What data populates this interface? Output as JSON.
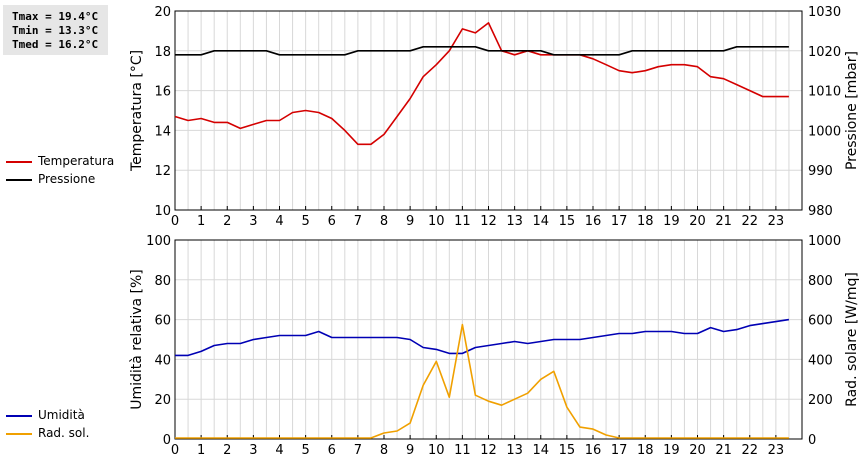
{
  "stats": {
    "tmax": "Tmax = 19.4°C",
    "tmin": "Tmin = 13.3°C",
    "tmed": "Tmed = 16.2°C"
  },
  "legend": {
    "top": [
      {
        "label": "Temperatura",
        "color": "#d40000"
      },
      {
        "label": "Pressione",
        "color": "#000000"
      }
    ],
    "bottom": [
      {
        "label": "Umidità",
        "color": "#0000b4"
      },
      {
        "label": "Rad. sol.",
        "color": "#f0a000"
      }
    ]
  },
  "chart_data": [
    {
      "type": "line",
      "xlabel": "",
      "ylabel": "Temperatura [°C]",
      "y2label": "Pressione [mbar]",
      "xlim": [
        0,
        24
      ],
      "ylim": [
        10,
        20
      ],
      "y2lim": [
        980,
        1030
      ],
      "xticks": [
        "0",
        "1",
        "2",
        "3",
        "4",
        "5",
        "6",
        "7",
        "8",
        "9",
        "10",
        "11",
        "12",
        "13",
        "14",
        "15",
        "16",
        "17",
        "18",
        "19",
        "20",
        "21",
        "22",
        "23"
      ],
      "yticks": [
        "10",
        "12",
        "14",
        "16",
        "18",
        "20"
      ],
      "y2ticks": [
        "980",
        "990",
        "1000",
        "1010",
        "1020",
        "1030"
      ],
      "grid": true,
      "series": [
        {
          "name": "Temperatura",
          "axis": "left",
          "color": "#d40000",
          "x": [
            0,
            0.5,
            1,
            1.5,
            2,
            2.5,
            3,
            3.5,
            4,
            4.5,
            5,
            5.5,
            6,
            6.5,
            7,
            7.5,
            8,
            8.5,
            9,
            9.5,
            10,
            10.5,
            11,
            11.5,
            12,
            12.5,
            13,
            13.5,
            14,
            14.5,
            15,
            15.5,
            16,
            16.5,
            17,
            17.5,
            18,
            18.5,
            19,
            19.5,
            20,
            20.5,
            21,
            21.5,
            22,
            22.5,
            23,
            23.5
          ],
          "values": [
            14.7,
            14.5,
            14.6,
            14.4,
            14.4,
            14.1,
            14.3,
            14.5,
            14.5,
            14.9,
            15.0,
            14.9,
            14.6,
            14.0,
            13.3,
            13.3,
            13.8,
            14.7,
            15.6,
            16.7,
            17.3,
            18.0,
            19.1,
            18.9,
            19.4,
            18.0,
            17.8,
            18.0,
            17.8,
            17.8,
            17.8,
            17.8,
            17.6,
            17.3,
            17.0,
            16.9,
            17.0,
            17.2,
            17.3,
            17.3,
            17.2,
            16.7,
            16.6,
            16.3,
            16.0,
            15.7,
            15.7,
            15.7
          ]
        },
        {
          "name": "Pressione",
          "axis": "right",
          "color": "#000000",
          "x": [
            0,
            0.5,
            1,
            1.5,
            2,
            2.5,
            3,
            3.5,
            4,
            4.5,
            5,
            5.5,
            6,
            6.5,
            7,
            7.5,
            8,
            8.5,
            9,
            9.5,
            10,
            10.5,
            11,
            11.5,
            12,
            12.5,
            13,
            13.5,
            14,
            14.5,
            15,
            15.5,
            16,
            16.5,
            17,
            17.5,
            18,
            18.5,
            19,
            19.5,
            20,
            20.5,
            21,
            21.5,
            22,
            22.5,
            23,
            23.5
          ],
          "values": [
            1019,
            1019,
            1019,
            1020,
            1020,
            1020,
            1020,
            1020,
            1019,
            1019,
            1019,
            1019,
            1019,
            1019,
            1020,
            1020,
            1020,
            1020,
            1020,
            1021,
            1021,
            1021,
            1021,
            1021,
            1020,
            1020,
            1020,
            1020,
            1020,
            1019,
            1019,
            1019,
            1019,
            1019,
            1019,
            1020,
            1020,
            1020,
            1020,
            1020,
            1020,
            1020,
            1020,
            1021,
            1021,
            1021,
            1021,
            1021
          ]
        }
      ]
    },
    {
      "type": "line",
      "xlabel": "",
      "ylabel": "Umidità relativa [%]",
      "y2label": "Rad. solare [W/mq]",
      "xlim": [
        0,
        24
      ],
      "ylim": [
        0,
        100
      ],
      "y2lim": [
        0,
        1000
      ],
      "xticks": [
        "0",
        "1",
        "2",
        "3",
        "4",
        "5",
        "6",
        "7",
        "8",
        "9",
        "10",
        "11",
        "12",
        "13",
        "14",
        "15",
        "16",
        "17",
        "18",
        "19",
        "20",
        "21",
        "22",
        "23"
      ],
      "yticks": [
        "0",
        "20",
        "40",
        "60",
        "80",
        "100"
      ],
      "y2ticks": [
        "0",
        "200",
        "400",
        "600",
        "800",
        "1000"
      ],
      "grid": true,
      "series": [
        {
          "name": "Umidità",
          "axis": "left",
          "color": "#0000b4",
          "x": [
            0,
            0.5,
            1,
            1.5,
            2,
            2.5,
            3,
            3.5,
            4,
            4.5,
            5,
            5.5,
            6,
            6.5,
            7,
            7.5,
            8,
            8.5,
            9,
            9.5,
            10,
            10.5,
            11,
            11.5,
            12,
            12.5,
            13,
            13.5,
            14,
            14.5,
            15,
            15.5,
            16,
            16.5,
            17,
            17.5,
            18,
            18.5,
            19,
            19.5,
            20,
            20.5,
            21,
            21.5,
            22,
            22.5,
            23,
            23.5
          ],
          "values": [
            42,
            42,
            44,
            47,
            48,
            48,
            50,
            51,
            52,
            52,
            52,
            54,
            51,
            51,
            51,
            51,
            51,
            51,
            50,
            46,
            45,
            43,
            43,
            46,
            47,
            48,
            49,
            48,
            49,
            50,
            50,
            50,
            51,
            52,
            53,
            53,
            54,
            54,
            54,
            53,
            53,
            56,
            54,
            55,
            57,
            58,
            59,
            60
          ]
        },
        {
          "name": "Rad. sol.",
          "axis": "right",
          "color": "#f0a000",
          "x": [
            0,
            0.5,
            1,
            1.5,
            2,
            2.5,
            3,
            3.5,
            4,
            4.5,
            5,
            5.5,
            6,
            6.5,
            7,
            7.5,
            8,
            8.5,
            9,
            9.5,
            10,
            10.5,
            11,
            11.5,
            12,
            12.5,
            13,
            13.5,
            14,
            14.5,
            15,
            15.5,
            16,
            16.5,
            17,
            17.5,
            18,
            18.5,
            19,
            19.5,
            20,
            20.5,
            21,
            21.5,
            22,
            22.5,
            23,
            23.5
          ],
          "values": [
            5,
            5,
            5,
            5,
            5,
            5,
            5,
            5,
            5,
            5,
            5,
            5,
            5,
            5,
            5,
            5,
            30,
            40,
            80,
            270,
            390,
            210,
            575,
            220,
            190,
            170,
            200,
            230,
            300,
            340,
            160,
            60,
            50,
            20,
            5,
            5,
            5,
            5,
            5,
            5,
            5,
            5,
            5,
            5,
            5,
            5,
            5,
            5
          ]
        }
      ]
    }
  ]
}
